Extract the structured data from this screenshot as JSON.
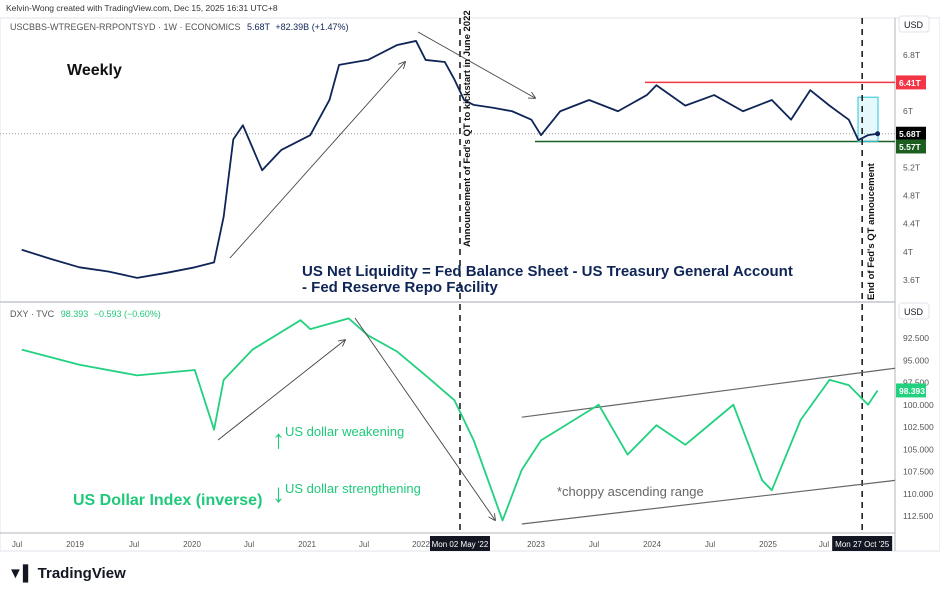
{
  "credit": "Kelvin-Wong created with TradingView.com, Dec 15, 2025 16:31 UTC+8",
  "logo": "TradingView",
  "top_pane": {
    "symbol": "USCBBS-WTREGEN-RRPONTSYD · 1W · ECONOMICS",
    "last": "5.68T",
    "change": "+82.39B (+1.47%)",
    "currency": "USD",
    "ticks": [
      "6.8T",
      "6T",
      "5.2T",
      "4.8T",
      "4.4T",
      "4T",
      "3.6T"
    ],
    "label_weekly": "Weekly",
    "title_line1": "US Net Liquidity = Fed Balance Sheet - US Treasury General Account",
    "title_line2": "- Fed Reserve Repo Facility",
    "vline1_text": "Announcement of Fed's QT to kickstart in June 2022",
    "vline2_text": "End of Fed's QT annoucement",
    "resistance_label": "6.41T",
    "support_label": "5.57T",
    "price_label": "5.68T"
  },
  "bottom_pane": {
    "symbol": "DXY · TVC",
    "last": "98.393",
    "change": "−0.593 (−0.60%)",
    "currency": "USD",
    "ticks": [
      "92.500",
      "95.000",
      "97.500",
      "100.000",
      "102.500",
      "105.000",
      "107.500",
      "110.000",
      "112.500"
    ],
    "price_label": "98.393",
    "label_weakening": "US dollar weakening",
    "label_strengthening": "US dollar strengthening",
    "label_index": "US Dollar Index (inverse)",
    "label_range": "*choppy ascending range"
  },
  "time_axis": {
    "ticks": [
      "Jul",
      "2019",
      "Jul",
      "2020",
      "Jul",
      "2021",
      "Jul",
      "2022",
      "2023",
      "Jul",
      "2024",
      "Jul",
      "2025",
      "Jul"
    ],
    "marker1": "Mon 02 May '22",
    "marker2": "Mon 27 Oct '25"
  },
  "colors": {
    "liquidity": "#0f2557",
    "dxy": "#22d17f",
    "resistance": "#f23645",
    "support": "#1b5e20",
    "box": "#26c6da",
    "text_green": "#1fc97a"
  },
  "chart_data": [
    {
      "type": "line",
      "name": "USCBBS-WTREGEN-RRPONTSYD",
      "unit": "T USD",
      "ylim": [
        3.5,
        7.1
      ],
      "x": [
        "2018-07",
        "2018-10",
        "2019-01",
        "2019-04",
        "2019-07",
        "2019-10",
        "2020-01",
        "2020-03",
        "2020-04",
        "2020-05",
        "2020-06",
        "2020-08",
        "2020-10",
        "2021-01",
        "2021-03",
        "2021-04",
        "2021-07",
        "2021-10",
        "2021-12",
        "2022-01",
        "2022-03",
        "2022-04",
        "2022-05",
        "2022-06",
        "2022-08",
        "2022-10",
        "2022-12",
        "2023-01",
        "2023-03",
        "2023-06",
        "2023-09",
        "2023-12",
        "2024-01",
        "2024-04",
        "2024-07",
        "2024-10",
        "2025-01",
        "2025-03",
        "2025-05",
        "2025-07",
        "2025-09",
        "2025-10",
        "2025-11",
        "2025-12"
      ],
      "y": [
        4.03,
        3.9,
        3.78,
        3.72,
        3.63,
        3.7,
        3.78,
        3.85,
        4.5,
        5.6,
        5.8,
        5.16,
        5.45,
        5.66,
        6.16,
        6.66,
        6.73,
        6.94,
        7.0,
        6.73,
        6.7,
        6.45,
        6.16,
        6.09,
        6.05,
        6.0,
        5.88,
        5.66,
        6.0,
        6.16,
        6.0,
        6.23,
        6.37,
        6.08,
        6.23,
        6.0,
        6.16,
        5.88,
        6.3,
        6.08,
        5.88,
        5.59,
        5.66,
        5.68
      ]
    },
    {
      "type": "line",
      "name": "DXY",
      "inverted": true,
      "ylim": [
        90,
        114
      ],
      "x": [
        "2018-07",
        "2019-01",
        "2019-07",
        "2020-01",
        "2020-03",
        "2020-04",
        "2020-07",
        "2020-12",
        "2021-01",
        "2021-05",
        "2021-07",
        "2021-10",
        "2022-01",
        "2022-04",
        "2022-06",
        "2022-09",
        "2022-11",
        "2023-01",
        "2023-07",
        "2023-10",
        "2024-01",
        "2024-04",
        "2024-09",
        "2024-12",
        "2025-01",
        "2025-04",
        "2025-07",
        "2025-09",
        "2025-11",
        "2025-12"
      ],
      "y": [
        93.8,
        95.5,
        96.7,
        96.1,
        102.8,
        97.2,
        93.8,
        90.5,
        91.5,
        90.3,
        92.2,
        94.0,
        96.7,
        99.5,
        104.0,
        113.0,
        107.3,
        104.0,
        100.0,
        105.6,
        102.3,
        104.5,
        100.0,
        108.5,
        109.6,
        101.7,
        97.2,
        97.8,
        100.0,
        98.4
      ]
    },
    {
      "type": "levels",
      "resistance": 6.41,
      "support": 5.57,
      "last": 5.68,
      "events": [
        "2022-05-02",
        "2025-10-27"
      ],
      "dxy_channel": {
        "upper": [
          [
            "2022-11",
            101.4
          ],
          [
            "2026-01",
            95.9
          ]
        ],
        "lower": [
          [
            "2022-11",
            113.4
          ],
          [
            "2026-01",
            108.5
          ]
        ]
      }
    }
  ]
}
